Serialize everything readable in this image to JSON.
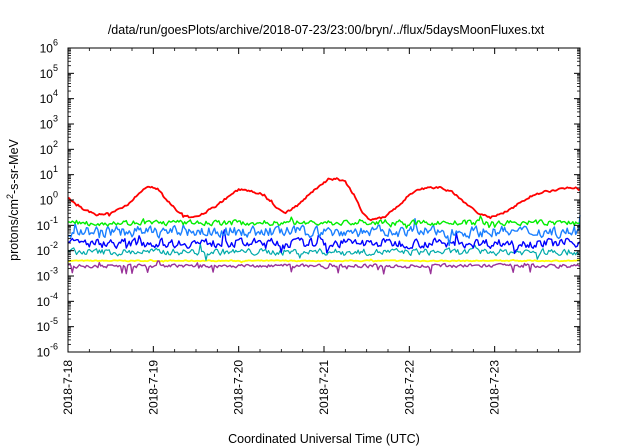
{
  "chart_data": {
    "type": "line",
    "title": "/data/run/goesPlots/archive/2018-07-23/23:00/bryn/../flux/5daysMoonFluxes.txt",
    "xlabel": "Coordinated Universal Time (UTC)",
    "ylabel": {
      "base": "protons/cm",
      "sup": "2",
      "rest": "-s-sr-MeV"
    },
    "y_scale": "log",
    "ylim_exponent": [
      -6,
      6
    ],
    "y_ticks": [
      {
        "base": "10",
        "exp": "-6"
      },
      {
        "base": "10",
        "exp": "-5"
      },
      {
        "base": "10",
        "exp": "-4"
      },
      {
        "base": "10",
        "exp": "-3"
      },
      {
        "base": "10",
        "exp": "-2"
      },
      {
        "base": "10",
        "exp": "-1"
      },
      {
        "base": "10",
        "exp": "0"
      },
      {
        "base": "10",
        "exp": "1"
      },
      {
        "base": "10",
        "exp": "2"
      },
      {
        "base": "10",
        "exp": "3"
      },
      {
        "base": "10",
        "exp": "4"
      },
      {
        "base": "10",
        "exp": "5"
      },
      {
        "base": "10",
        "exp": "6"
      }
    ],
    "xlim_days": [
      "2018-7-18",
      "2018-7-24"
    ],
    "x_ticks": [
      "2018-7-18",
      "2018-7-19",
      "2018-7-20",
      "2018-7-21",
      "2018-7-22",
      "2018-7-23"
    ],
    "grid": false,
    "legend": "none",
    "series_approx": [
      {
        "color": "#ff0000",
        "width": 1.8,
        "days": [
          0,
          0.1,
          0.2,
          0.35,
          0.5,
          0.7,
          0.85,
          0.95,
          1.05,
          1.15,
          1.3,
          1.45,
          1.6,
          1.75,
          1.9,
          2.0,
          2.15,
          2.3,
          2.4,
          2.55,
          2.7,
          2.85,
          3.0,
          3.15,
          3.25,
          3.35,
          3.45,
          3.55,
          3.7,
          3.85,
          4.0,
          4.15,
          4.35,
          4.5,
          4.65,
          4.8,
          4.95,
          5.15,
          5.3,
          5.45,
          5.6,
          5.75,
          5.85,
          5.95,
          6.0
        ],
        "log10": [
          0.1,
          -0.2,
          -0.4,
          -0.6,
          -0.5,
          -0.2,
          0.3,
          0.55,
          0.45,
          0.0,
          -0.5,
          -0.7,
          -0.5,
          -0.2,
          0.2,
          0.4,
          0.35,
          0.2,
          -0.2,
          -0.5,
          -0.2,
          0.3,
          0.7,
          0.85,
          0.7,
          0.2,
          -0.5,
          -0.8,
          -0.7,
          -0.3,
          0.2,
          0.45,
          0.5,
          0.3,
          -0.1,
          -0.5,
          -0.7,
          -0.45,
          -0.1,
          0.2,
          0.35,
          0.4,
          0.5,
          0.5,
          0.4
        ]
      },
      {
        "color": "#00ee00",
        "width": 1.4,
        "days": [
          0,
          6
        ],
        "log10": [
          -0.9,
          -0.9
        ],
        "amp": 0.15
      },
      {
        "color": "#1a7fff",
        "width": 1.4,
        "days": [
          0,
          6
        ],
        "log10": [
          -1.25,
          -1.25
        ],
        "amp": 0.3
      },
      {
        "color": "#0000ff",
        "width": 1.4,
        "days": [
          0,
          6
        ],
        "log10": [
          -1.7,
          -1.7
        ],
        "amp": 0.25
      },
      {
        "color": "#00aaaa",
        "width": 1.2,
        "days": [
          0,
          6
        ],
        "log10": [
          -2.05,
          -2.05
        ],
        "amp": 0.18
      },
      {
        "color": "#ffff00",
        "width": 1.8,
        "days": [
          0,
          6
        ],
        "log10": [
          -2.4,
          -2.4
        ],
        "amp": 0.03
      },
      {
        "color": "#993399",
        "width": 1.4,
        "days": [
          0,
          6
        ],
        "log10": [
          -2.6,
          -2.6
        ],
        "amp": 0.1
      }
    ]
  }
}
